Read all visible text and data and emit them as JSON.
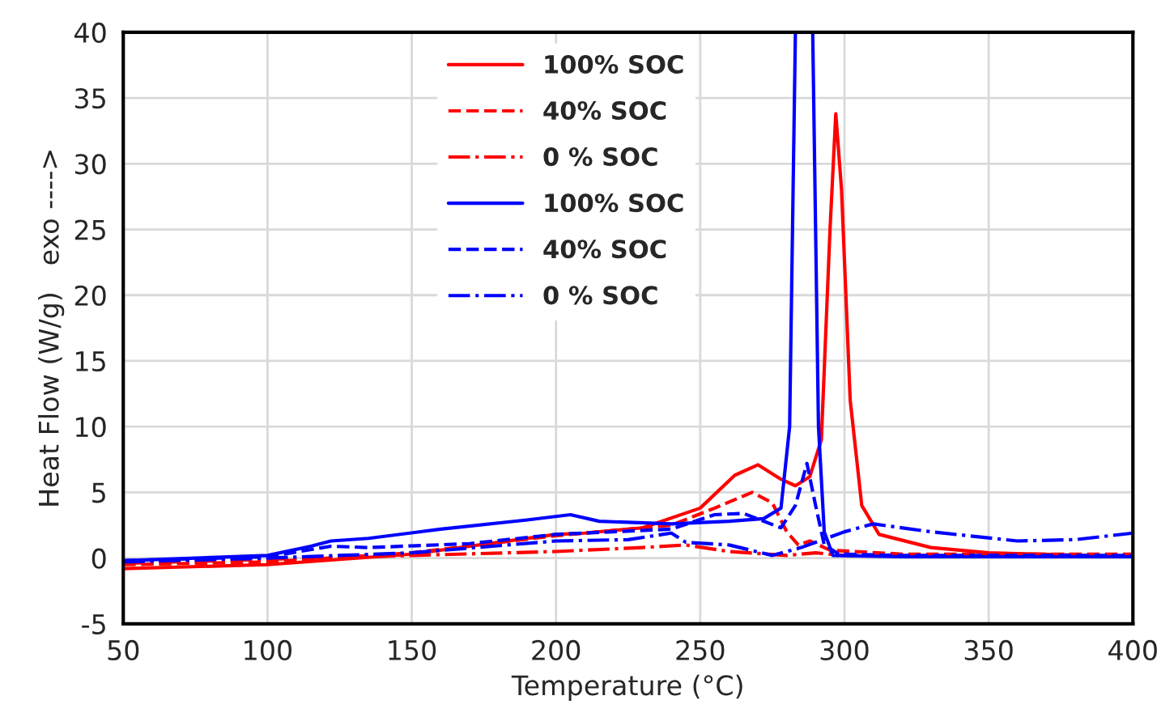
{
  "chart_data": {
    "type": "line",
    "xlabel": "Temperature (°C)",
    "ylabel": "Heat Flow (W/g)   exo ---->",
    "xlim": [
      50,
      400
    ],
    "xticks": [
      50,
      100,
      150,
      200,
      250,
      300,
      350,
      400
    ],
    "ylim": [
      -5,
      40
    ],
    "yticks": [
      -5,
      0,
      5,
      10,
      15,
      20,
      25,
      30,
      35,
      40
    ],
    "grid": true,
    "legend": "top left",
    "marker": "none",
    "series": [
      {
        "name": "100% SOC",
        "color": "#ff0000",
        "line_style": "solid",
        "x": [
          50,
          100,
          150,
          200,
          210,
          230,
          250,
          262,
          270,
          278,
          283,
          288,
          292,
          295,
          297,
          299,
          302,
          306,
          312,
          330,
          350,
          400
        ],
        "values": [
          -0.8,
          -0.5,
          0.3,
          1.8,
          1.9,
          2.3,
          3.8,
          6.3,
          7.1,
          6.0,
          5.5,
          6.2,
          9,
          25,
          33.8,
          28,
          12,
          4,
          1.8,
          0.8,
          0.4,
          0.1
        ]
      },
      {
        "name": "40% SOC",
        "color": "#ff0000",
        "line_style": "dashed",
        "x": [
          50,
          100,
          150,
          200,
          240,
          255,
          268,
          275,
          280,
          284,
          288,
          295,
          320,
          400
        ],
        "values": [
          -0.5,
          -0.3,
          0.4,
          1.7,
          2.5,
          3.8,
          5.0,
          4.2,
          2.0,
          1.0,
          1.3,
          0.6,
          0.3,
          0.3
        ]
      },
      {
        "name": "0 % SOC",
        "color": "#ff0000",
        "line_style": "dashdot",
        "x": [
          50,
          100,
          150,
          200,
          230,
          245,
          260,
          280,
          290,
          300,
          400
        ],
        "values": [
          -0.4,
          -0.1,
          0.2,
          0.5,
          0.8,
          1.0,
          0.5,
          0.2,
          0.4,
          0.2,
          0.1
        ]
      },
      {
        "name": "100% SOC",
        "color": "#0000ff",
        "line_style": "solid",
        "x": [
          50,
          100,
          115,
          122,
          135,
          160,
          190,
          205,
          215,
          240,
          260,
          272,
          278,
          281,
          283,
          286,
          289,
          291,
          293,
          296,
          320,
          400
        ],
        "values": [
          -0.2,
          0.2,
          0.9,
          1.3,
          1.5,
          2.2,
          2.9,
          3.3,
          2.8,
          2.6,
          2.8,
          3.0,
          3.8,
          10,
          40,
          null,
          40,
          10,
          2,
          0.2,
          0.1,
          0.1
        ]
      },
      {
        "name": "40% SOC",
        "color": "#0000ff",
        "line_style": "dashed",
        "x": [
          50,
          100,
          122,
          135,
          170,
          200,
          240,
          255,
          265,
          278,
          283,
          287,
          290,
          293,
          298,
          320,
          400
        ],
        "values": [
          -0.2,
          0.1,
          0.9,
          0.8,
          1.1,
          1.8,
          2.2,
          3.3,
          3.4,
          2.3,
          4,
          7.2,
          4,
          1,
          0.3,
          0.2,
          0.2
        ]
      },
      {
        "name": "0 % SOC",
        "color": "#0000ff",
        "line_style": "dashdot",
        "x": [
          50,
          100,
          150,
          200,
          225,
          240,
          245,
          260,
          275,
          285,
          300,
          310,
          330,
          360,
          380,
          400
        ],
        "values": [
          -0.3,
          0,
          0.4,
          1.3,
          1.4,
          1.9,
          1.2,
          1.0,
          0.2,
          0.8,
          2.0,
          2.6,
          2.0,
          1.3,
          1.4,
          1.9
        ]
      }
    ]
  }
}
